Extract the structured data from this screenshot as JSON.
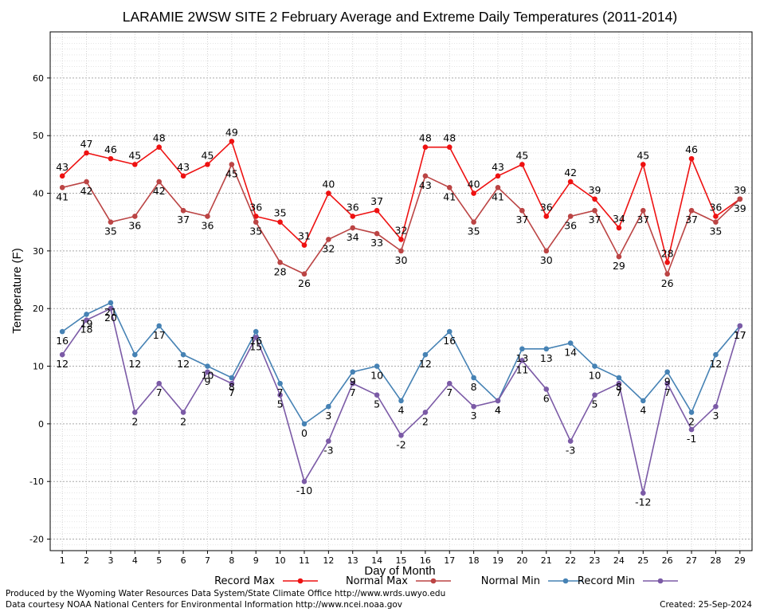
{
  "chart_data": {
    "type": "line",
    "title": "LARAMIE 2WSW SITE 2 February Average and Extreme Daily Temperatures (2011-2014)",
    "xlabel": "Day of Month",
    "ylabel": "Temperature (F)",
    "xlim": [
      0.5,
      29.5
    ],
    "ylim": [
      -22,
      68
    ],
    "y_ticks": [
      -20,
      -10,
      0,
      10,
      20,
      30,
      40,
      50,
      60
    ],
    "y_minor_step": 1,
    "grid": true,
    "legend_position": "bottom",
    "categories": [
      1,
      2,
      3,
      4,
      5,
      6,
      7,
      8,
      9,
      10,
      11,
      12,
      13,
      14,
      15,
      16,
      17,
      18,
      19,
      20,
      21,
      22,
      23,
      24,
      25,
      26,
      27,
      28,
      29
    ],
    "series": [
      {
        "name": "Record Max",
        "color": "#ee1111",
        "values": [
          43,
          47,
          46,
          45,
          48,
          43,
          45,
          49,
          36,
          35,
          31,
          40,
          36,
          37,
          32,
          48,
          48,
          40,
          43,
          45,
          36,
          42,
          39,
          34,
          45,
          28,
          46,
          36,
          39
        ]
      },
      {
        "name": "Normal Max",
        "color": "#bb4444",
        "values": [
          41,
          42,
          35,
          36,
          42,
          37,
          36,
          45,
          35,
          28,
          26,
          32,
          34,
          33,
          30,
          43,
          41,
          35,
          41,
          37,
          30,
          36,
          37,
          29,
          37,
          26,
          37,
          35,
          39
        ]
      },
      {
        "name": "Normal Min",
        "color": "#4682b4",
        "values": [
          16,
          19,
          21,
          12,
          17,
          12,
          10,
          8,
          16,
          7,
          0,
          3,
          9,
          10,
          4,
          12,
          16,
          8,
          4,
          13,
          13,
          14,
          10,
          8,
          4,
          9,
          2,
          12,
          17
        ]
      },
      {
        "name": "Record Min",
        "color": "#7b5aa6",
        "values": [
          12,
          18,
          20,
          2,
          7,
          2,
          9,
          7,
          15,
          5,
          -10,
          -3,
          7,
          5,
          -2,
          2,
          7,
          3,
          4,
          11,
          6,
          -3,
          5,
          7,
          -12,
          7,
          -1,
          3,
          17
        ]
      }
    ]
  },
  "footer": {
    "produced_by": "Produced by the Wyoming Water Resources Data System/State Climate Office http://www.wrds.uwyo.edu",
    "data_courtesy": "Data courtesy NOAA National Centers for Environmental Information http://www.ncei.noaa.gov",
    "created": "Created:  25-Sep-2024"
  }
}
